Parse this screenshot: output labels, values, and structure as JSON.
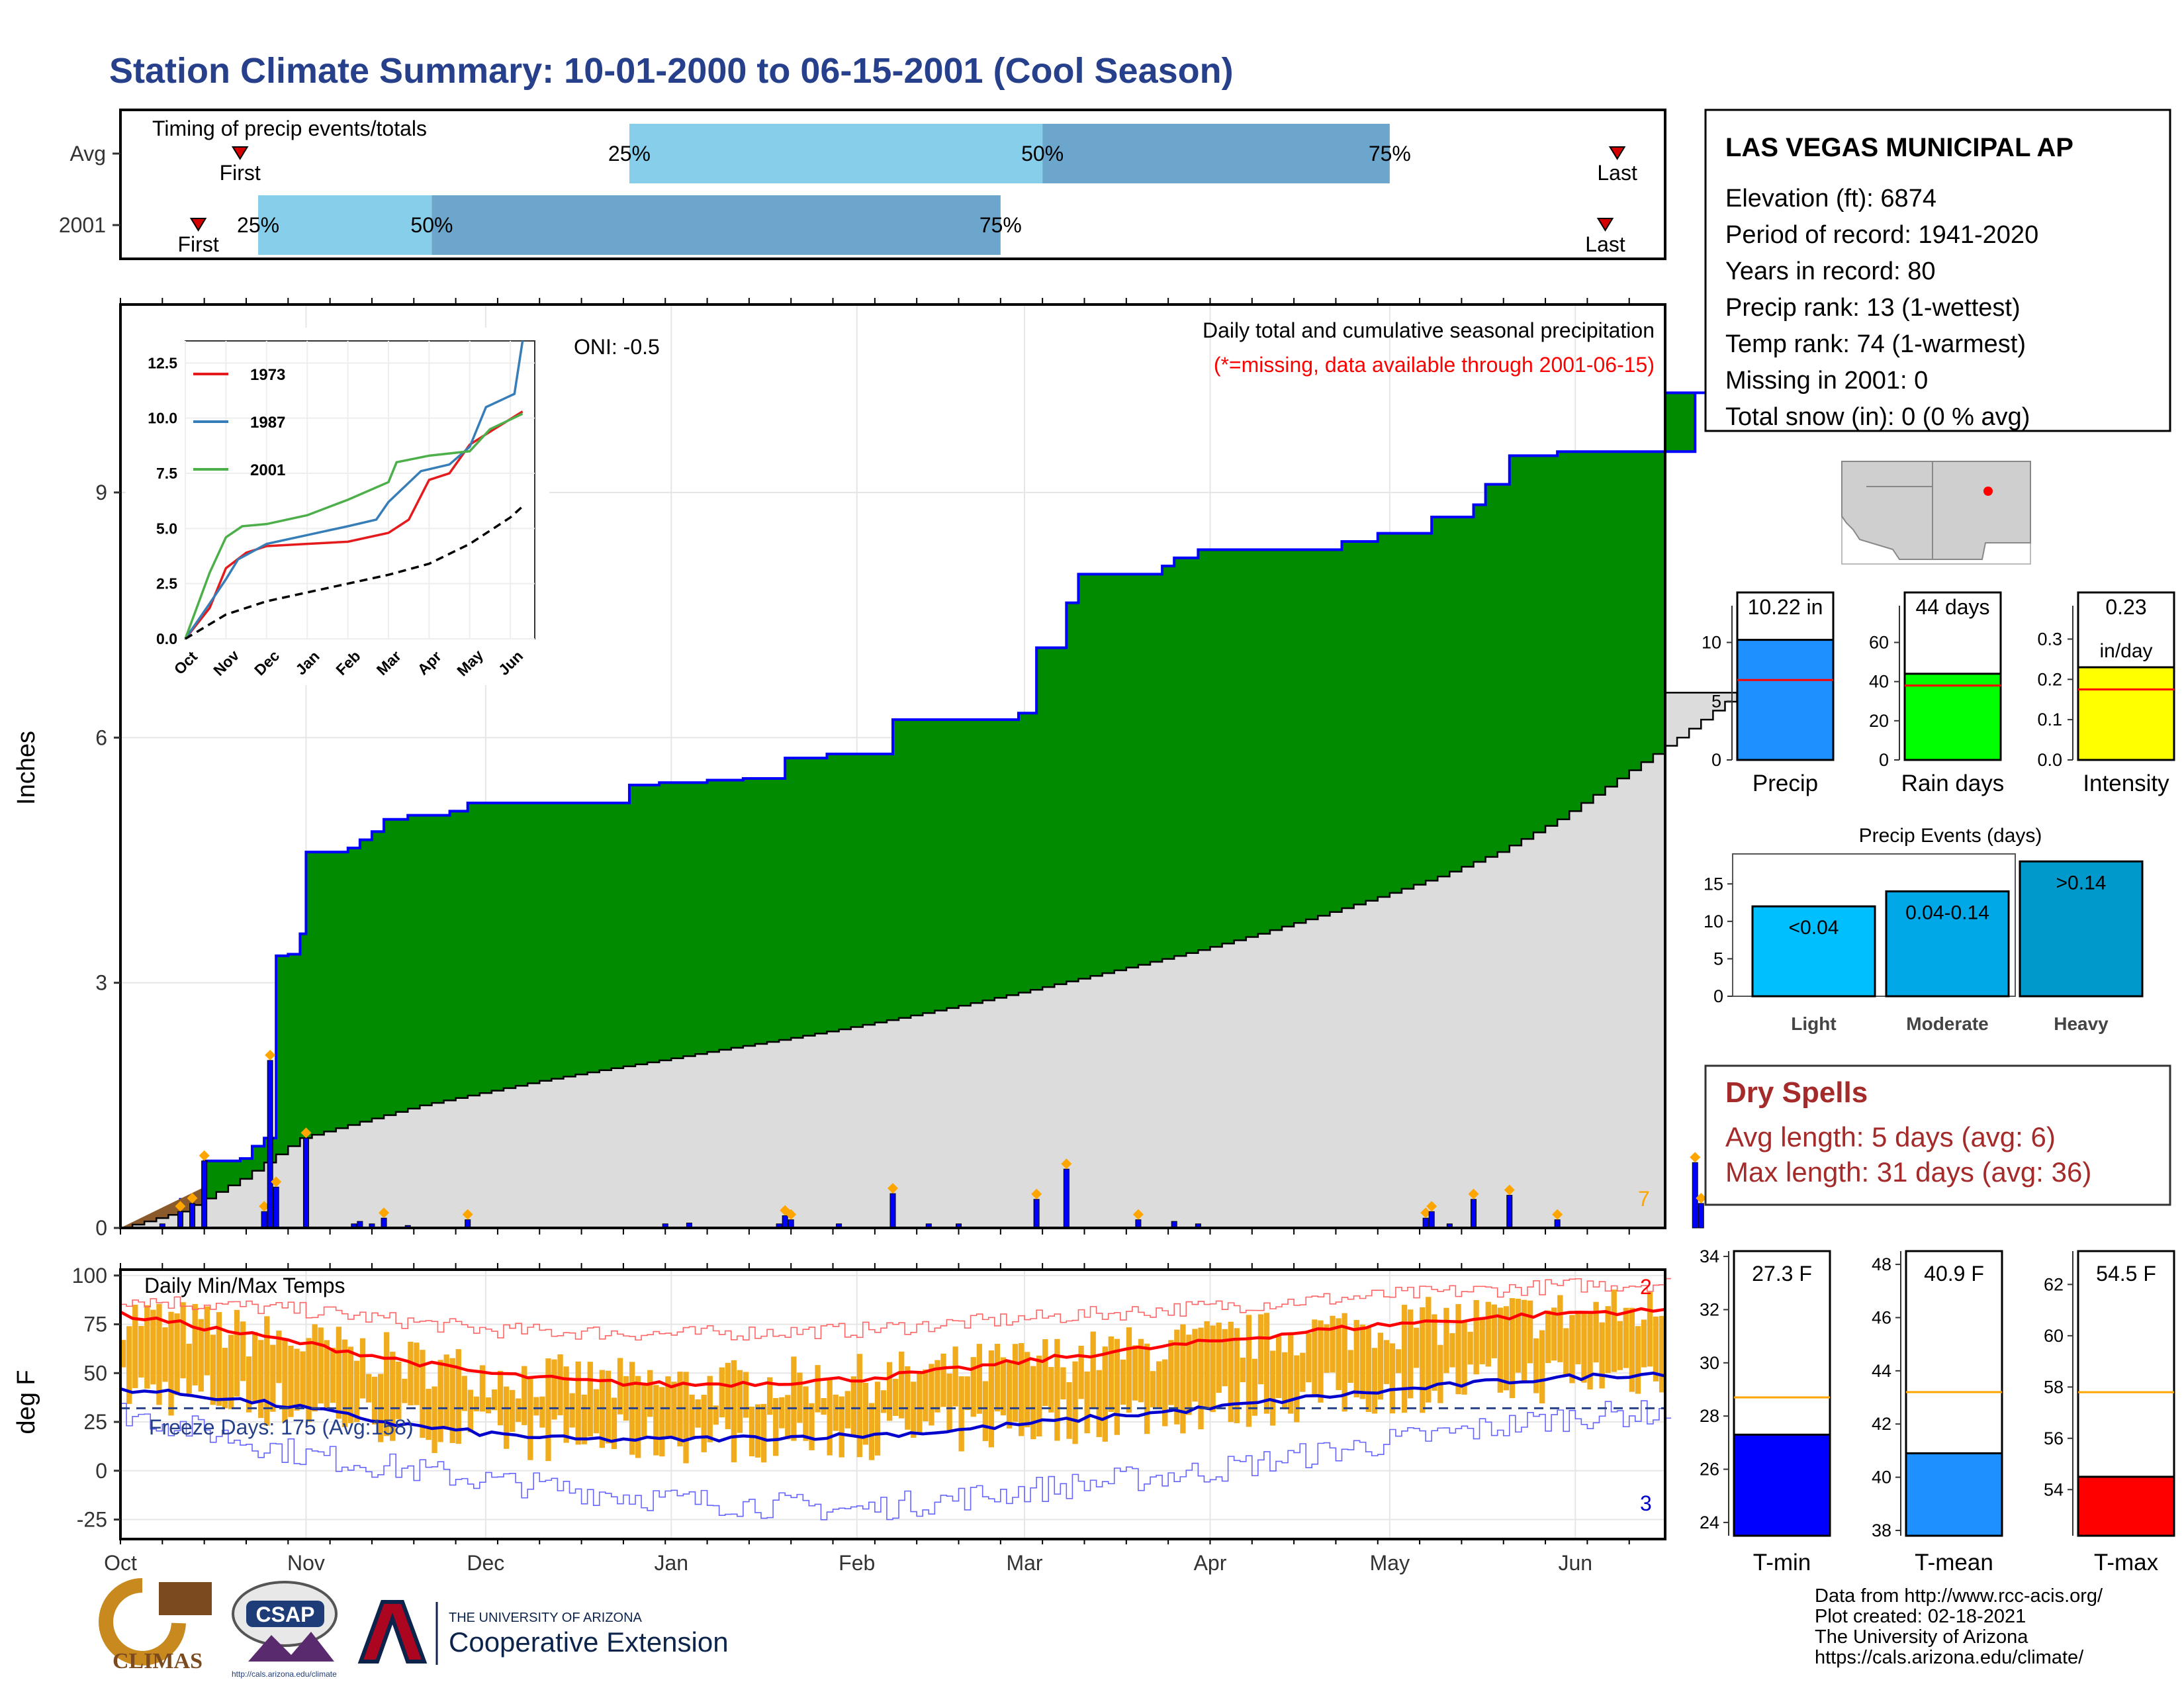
{
  "title": "Station Climate Summary: 10-01-2000 to 06-15-2001 (Cool Season)",
  "timing": {
    "label": "Timing of precip events/totals",
    "rows": [
      {
        "name": "Avg",
        "first_label": "First",
        "last_label": "Last",
        "first_day": 15,
        "last_day": 250,
        "p25_day": 85,
        "p50_day": 154,
        "p75_day": 212,
        "p25_label": "25%",
        "p50_label": "50%",
        "p75_label": "75%"
      },
      {
        "name": "2001",
        "first_label": "First",
        "last_label": "Last",
        "first_day": 13,
        "last_day": 248,
        "p25_day": 23,
        "p50_day": 52,
        "p75_day": 147,
        "p25_label": "25%",
        "p50_label": "50%",
        "p75_label": "75%"
      }
    ],
    "colors": {
      "light": "#87CEEB",
      "dark": "#6CA6CD",
      "marker": "#D40000"
    }
  },
  "main": {
    "ylabel": "Inches",
    "oni_label": "ONI: -0.5",
    "desc_label": "Daily total and cumulative seasonal precipitation",
    "missing_label": "(*=missing, data available through 2001-06-15)",
    "end_label": "7",
    "yticks": [
      0,
      3,
      6,
      9
    ],
    "ylim": [
      0,
      11.3
    ],
    "colors": {
      "cum": "#008B00",
      "avg": "#DCDCDC",
      "bars": "#0000FF",
      "marker": "#FFA500",
      "early": "#8B5A2B"
    }
  },
  "inset": {
    "yticks": [
      "0.0",
      "2.5",
      "5.0",
      "7.5",
      "10.0",
      "12.5"
    ],
    "xlabels": [
      "Oct",
      "Nov",
      "Dec",
      "Jan",
      "Feb",
      "Mar",
      "Apr",
      "May",
      "Jun"
    ],
    "legend": [
      {
        "name": "1973",
        "color": "#E41A1C"
      },
      {
        "name": "1987",
        "color": "#377EB8"
      },
      {
        "name": "2001",
        "color": "#4DAF4A"
      }
    ]
  },
  "temps": {
    "title": "Daily Min/Max Temps",
    "ylabel": "deg F",
    "freeze_label": "Freeze Days: 175 (Avg:158)",
    "top_count": "2",
    "bottom_count": "3",
    "yticks": [
      "100",
      "75",
      "50",
      "25",
      "0",
      "-25"
    ],
    "ylim": [
      -35,
      103
    ],
    "freeze_line": 32
  },
  "xaxis": {
    "months": [
      "Oct",
      "Nov",
      "Dec",
      "Jan",
      "Feb",
      "Mar",
      "Apr",
      "May",
      "Jun"
    ],
    "month_days": [
      0,
      31,
      61,
      92,
      123,
      151,
      182,
      212,
      243
    ],
    "season_days": 258
  },
  "station": {
    "name": "LAS VEGAS MUNICIPAL AP",
    "lines": [
      "Elevation (ft): 6874",
      "Period of record: 1941-2020",
      "Years in record: 80",
      "Precip rank: 13 (1-wettest)",
      "Temp rank: 74 (1-warmest)",
      "Missing in 2001: 0",
      "Total snow (in): 0 (0 % avg)"
    ]
  },
  "minibars": [
    {
      "name": "Precip",
      "value": 10.22,
      "value_label": "10.22 in",
      "avg": 6.8,
      "ymax": 12,
      "yticks": [
        "0",
        "5",
        "10"
      ],
      "tickvals": [
        0,
        5,
        10
      ],
      "color": "#1E90FF"
    },
    {
      "name": "Rain days",
      "value": 44,
      "value_label": "44 days",
      "avg": 38,
      "ymax": 72,
      "yticks": [
        "0",
        "20",
        "40",
        "60"
      ],
      "tickvals": [
        0,
        20,
        40,
        60
      ],
      "color": "#00FF00"
    },
    {
      "name": "Intensity",
      "value": 0.23,
      "value_label": "0.23",
      "unit_label": "in/day",
      "avg": 0.175,
      "ymax": 0.35,
      "yticks": [
        "0.0",
        "0.1",
        "0.2",
        "0.3"
      ],
      "tickvals": [
        0,
        0.1,
        0.2,
        0.3
      ],
      "color": "#FFFF00"
    }
  ],
  "events": {
    "title": "Precip Events (days)",
    "yticks": [
      "0",
      "5",
      "10",
      "15"
    ],
    "tickvals": [
      0,
      5,
      10,
      15
    ],
    "ymax": 19,
    "bars": [
      {
        "name": "Light",
        "label": "<0.04",
        "value": 12,
        "color": "#00BFFF"
      },
      {
        "name": "Moderate",
        "label": "0.04-0.14",
        "value": 14,
        "color": "#00A8E8"
      },
      {
        "name": "Heavy",
        "label": ">0.14",
        "value": 18,
        "color": "#0099CC"
      }
    ]
  },
  "dry": {
    "title": "Dry Spells",
    "avg_line": "Avg length: 5 days (avg: 6)",
    "max_line": "Max length: 31 days (avg: 36)"
  },
  "tbars": [
    {
      "name": "T-min",
      "value": 27.3,
      "value_label": "27.3 F",
      "avg": 28.7,
      "ymin": 23.5,
      "ymax": 34.2,
      "yticks": [
        "24",
        "26",
        "28",
        "30",
        "32",
        "34"
      ],
      "tickvals": [
        24,
        26,
        28,
        30,
        32,
        34
      ],
      "color": "#0000FF"
    },
    {
      "name": "T-mean",
      "value": 40.9,
      "value_label": "40.9 F",
      "avg": 43.2,
      "ymin": 37.8,
      "ymax": 48.5,
      "yticks": [
        "38",
        "40",
        "42",
        "44",
        "46",
        "48"
      ],
      "tickvals": [
        38,
        40,
        42,
        44,
        46,
        48
      ],
      "color": "#1E90FF"
    },
    {
      "name": "T-max",
      "value": 54.5,
      "value_label": "54.5 F",
      "avg": 57.8,
      "ymin": 52.2,
      "ymax": 63.3,
      "yticks": [
        "54",
        "56",
        "58",
        "60",
        "62"
      ],
      "tickvals": [
        54,
        56,
        58,
        60,
        62
      ],
      "color": "#FF0000"
    }
  ],
  "footer": {
    "lines": [
      "Data from http://www.rcc-acis.org/",
      "Plot created: 02-18-2021",
      "The University of Arizona",
      "https://cals.arizona.edu/climate/"
    ],
    "logos": {
      "climas": "CLIMAS",
      "csap": "CSAP",
      "csap_url": "http://cals.arizona.edu/climate",
      "ua_small": "THE UNIVERSITY OF ARIZONA",
      "ua_big": "Cooperative Extension"
    }
  },
  "chart_data": [
    {
      "type": "area",
      "title": "Daily total and cumulative seasonal precipitation",
      "ylabel": "Inches",
      "ylim": [
        0,
        11.3
      ],
      "cumulative_2001_steps": [
        [
          0,
          0
        ],
        [
          7,
          0.08
        ],
        [
          10,
          0.35
        ],
        [
          14,
          0.82
        ],
        [
          20,
          0.85
        ],
        [
          22,
          1.0
        ],
        [
          24,
          1.1
        ],
        [
          26,
          3.33
        ],
        [
          28,
          3.35
        ],
        [
          30,
          3.6
        ],
        [
          31,
          4.6
        ],
        [
          38,
          4.65
        ],
        [
          40,
          4.75
        ],
        [
          42,
          4.85
        ],
        [
          44,
          5.0
        ],
        [
          48,
          5.05
        ],
        [
          55,
          5.1
        ],
        [
          58,
          5.2
        ],
        [
          70,
          5.2
        ],
        [
          82,
          5.2
        ],
        [
          85,
          5.42
        ],
        [
          90,
          5.45
        ],
        [
          98,
          5.48
        ],
        [
          104,
          5.5
        ],
        [
          110,
          5.5
        ],
        [
          111,
          5.75
        ],
        [
          117,
          5.75
        ],
        [
          118,
          5.8
        ],
        [
          128,
          5.8
        ],
        [
          129,
          6.22
        ],
        [
          142,
          6.22
        ],
        [
          150,
          6.3
        ],
        [
          152,
          6.3
        ],
        [
          153,
          7.1
        ],
        [
          157,
          7.1
        ],
        [
          158,
          7.65
        ],
        [
          160,
          8.0
        ],
        [
          170,
          8.0
        ],
        [
          174,
          8.1
        ],
        [
          176,
          8.2
        ],
        [
          180,
          8.3
        ],
        [
          200,
          8.3
        ],
        [
          204,
          8.4
        ],
        [
          210,
          8.5
        ],
        [
          218,
          8.5
        ],
        [
          219,
          8.7
        ],
        [
          226,
          8.85
        ],
        [
          228,
          9.1
        ],
        [
          232,
          9.45
        ],
        [
          240,
          9.5
        ],
        [
          250,
          9.5
        ],
        [
          262,
          9.5
        ],
        [
          263,
          10.22
        ],
        [
          270,
          10.22
        ]
      ],
      "average_cumulative": [
        [
          0,
          0
        ],
        [
          10,
          0.2
        ],
        [
          20,
          0.6
        ],
        [
          30,
          1.1
        ],
        [
          40,
          1.3
        ],
        [
          50,
          1.5
        ],
        [
          60,
          1.65
        ],
        [
          70,
          1.8
        ],
        [
          80,
          1.93
        ],
        [
          90,
          2.05
        ],
        [
          100,
          2.18
        ],
        [
          110,
          2.3
        ],
        [
          120,
          2.43
        ],
        [
          130,
          2.57
        ],
        [
          140,
          2.72
        ],
        [
          150,
          2.88
        ],
        [
          160,
          3.05
        ],
        [
          170,
          3.22
        ],
        [
          180,
          3.4
        ],
        [
          190,
          3.6
        ],
        [
          200,
          3.82
        ],
        [
          210,
          4.05
        ],
        [
          220,
          4.3
        ],
        [
          230,
          4.6
        ],
        [
          240,
          5.0
        ],
        [
          250,
          5.5
        ],
        [
          260,
          6.0
        ],
        [
          270,
          6.55
        ]
      ],
      "daily_bars": [
        [
          7,
          0.05
        ],
        [
          10,
          0.2
        ],
        [
          12,
          0.3
        ],
        [
          14,
          0.82
        ],
        [
          24,
          0.2
        ],
        [
          25,
          2.05
        ],
        [
          26,
          0.5
        ],
        [
          31,
          1.1
        ],
        [
          39,
          0.05
        ],
        [
          40,
          0.08
        ],
        [
          42,
          0.05
        ],
        [
          44,
          0.12
        ],
        [
          48,
          0.03
        ],
        [
          58,
          0.1
        ],
        [
          91,
          0.05
        ],
        [
          95,
          0.06
        ],
        [
          110,
          0.05
        ],
        [
          111,
          0.15
        ],
        [
          112,
          0.1
        ],
        [
          120,
          0.05
        ],
        [
          129,
          0.42
        ],
        [
          135,
          0.05
        ],
        [
          140,
          0.05
        ],
        [
          153,
          0.35
        ],
        [
          158,
          0.72
        ],
        [
          170,
          0.1
        ],
        [
          176,
          0.08
        ],
        [
          180,
          0.05
        ],
        [
          218,
          0.12
        ],
        [
          219,
          0.2
        ],
        [
          222,
          0.05
        ],
        [
          226,
          0.35
        ],
        [
          232,
          0.4
        ],
        [
          240,
          0.1
        ],
        [
          263,
          0.8
        ],
        [
          264,
          0.3
        ]
      ]
    },
    {
      "type": "line",
      "title": "Daily Min/Max Temps",
      "ylabel": "deg F",
      "ylim": [
        -35,
        103
      ],
      "normal_max": [
        [
          0,
          80
        ],
        [
          15,
          73
        ],
        [
          31,
          65
        ],
        [
          46,
          57
        ],
        [
          61,
          50
        ],
        [
          76,
          46
        ],
        [
          92,
          44
        ],
        [
          107,
          45
        ],
        [
          123,
          47
        ],
        [
          137,
          51
        ],
        [
          151,
          56
        ],
        [
          166,
          61
        ],
        [
          182,
          66
        ],
        [
          197,
          71
        ],
        [
          212,
          75
        ],
        [
          227,
          78
        ],
        [
          243,
          81
        ],
        [
          258,
          82
        ]
      ],
      "normal_min": [
        [
          0,
          42
        ],
        [
          15,
          38
        ],
        [
          31,
          32
        ],
        [
          46,
          24
        ],
        [
          61,
          19
        ],
        [
          76,
          16
        ],
        [
          92,
          16
        ],
        [
          107,
          17
        ],
        [
          123,
          18
        ],
        [
          137,
          20
        ],
        [
          151,
          24
        ],
        [
          166,
          28
        ],
        [
          182,
          32
        ],
        [
          197,
          37
        ],
        [
          212,
          41
        ],
        [
          227,
          45
        ],
        [
          243,
          48
        ],
        [
          258,
          50
        ]
      ],
      "record_max_approx": [
        [
          0,
          88
        ],
        [
          31,
          82
        ],
        [
          61,
          72
        ],
        [
          92,
          70
        ],
        [
          123,
          72
        ],
        [
          151,
          78
        ],
        [
          182,
          84
        ],
        [
          212,
          90
        ],
        [
          243,
          95
        ],
        [
          258,
          96
        ]
      ],
      "record_min_approx": [
        [
          0,
          30
        ],
        [
          31,
          8
        ],
        [
          61,
          -5
        ],
        [
          92,
          -15
        ],
        [
          123,
          -20
        ],
        [
          151,
          -10
        ],
        [
          182,
          0
        ],
        [
          212,
          15
        ],
        [
          243,
          28
        ],
        [
          258,
          30
        ]
      ]
    },
    {
      "type": "line",
      "title": "",
      "xlabels": [
        "Oct",
        "Nov",
        "Dec",
        "Jan",
        "Feb",
        "Mar",
        "Apr",
        "May",
        "Jun"
      ],
      "ylim": [
        0,
        13.5
      ],
      "series": [
        {
          "name": "1973",
          "points": [
            [
              0,
              0
            ],
            [
              0.6,
              1.4
            ],
            [
              1,
              3.2
            ],
            [
              1.5,
              3.9
            ],
            [
              2,
              4.2
            ],
            [
              3,
              4.3
            ],
            [
              4,
              4.4
            ],
            [
              5,
              4.8
            ],
            [
              5.5,
              5.4
            ],
            [
              6,
              7.2
            ],
            [
              6.5,
              7.5
            ],
            [
              7,
              8.8
            ],
            [
              7.6,
              9.5
            ],
            [
              8.3,
              10.3
            ]
          ]
        },
        {
          "name": "1987",
          "points": [
            [
              0,
              0
            ],
            [
              0.6,
              1.6
            ],
            [
              1,
              2.7
            ],
            [
              1.3,
              3.6
            ],
            [
              2,
              4.3
            ],
            [
              3,
              4.7
            ],
            [
              4,
              5.1
            ],
            [
              4.7,
              5.4
            ],
            [
              5,
              6.2
            ],
            [
              5.8,
              7.6
            ],
            [
              6.5,
              7.9
            ],
            [
              7,
              8.7
            ],
            [
              7.4,
              10.5
            ],
            [
              8.1,
              11.1
            ],
            [
              8.3,
              13.5
            ]
          ]
        },
        {
          "name": "2001",
          "points": [
            [
              0,
              0
            ],
            [
              0.6,
              3.0
            ],
            [
              1,
              4.6
            ],
            [
              1.4,
              5.1
            ],
            [
              2,
              5.2
            ],
            [
              3,
              5.6
            ],
            [
              4,
              6.3
            ],
            [
              5,
              7.1
            ],
            [
              5.2,
              8.0
            ],
            [
              6,
              8.3
            ],
            [
              7,
              8.5
            ],
            [
              7.5,
              9.5
            ],
            [
              8.3,
              10.2
            ]
          ]
        },
        {
          "name": "",
          "points": [
            [
              0,
              0
            ],
            [
              1,
              1.1
            ],
            [
              2,
              1.7
            ],
            [
              3,
              2.1
            ],
            [
              4,
              2.5
            ],
            [
              5,
              2.9
            ],
            [
              6,
              3.4
            ],
            [
              7,
              4.3
            ],
            [
              8,
              5.5
            ],
            [
              8.3,
              6.0
            ]
          ]
        }
      ]
    },
    {
      "type": "bar",
      "categories": [
        "Precip",
        "Rain days",
        "Intensity"
      ],
      "values": [
        10.22,
        44,
        0.23
      ]
    },
    {
      "type": "bar",
      "title": "Precip Events (days)",
      "categories": [
        "Light",
        "Moderate",
        "Heavy"
      ],
      "values": [
        12,
        14,
        18
      ]
    },
    {
      "type": "bar",
      "categories": [
        "T-min",
        "T-mean",
        "T-max"
      ],
      "values": [
        27.3,
        40.9,
        54.5
      ]
    }
  ]
}
